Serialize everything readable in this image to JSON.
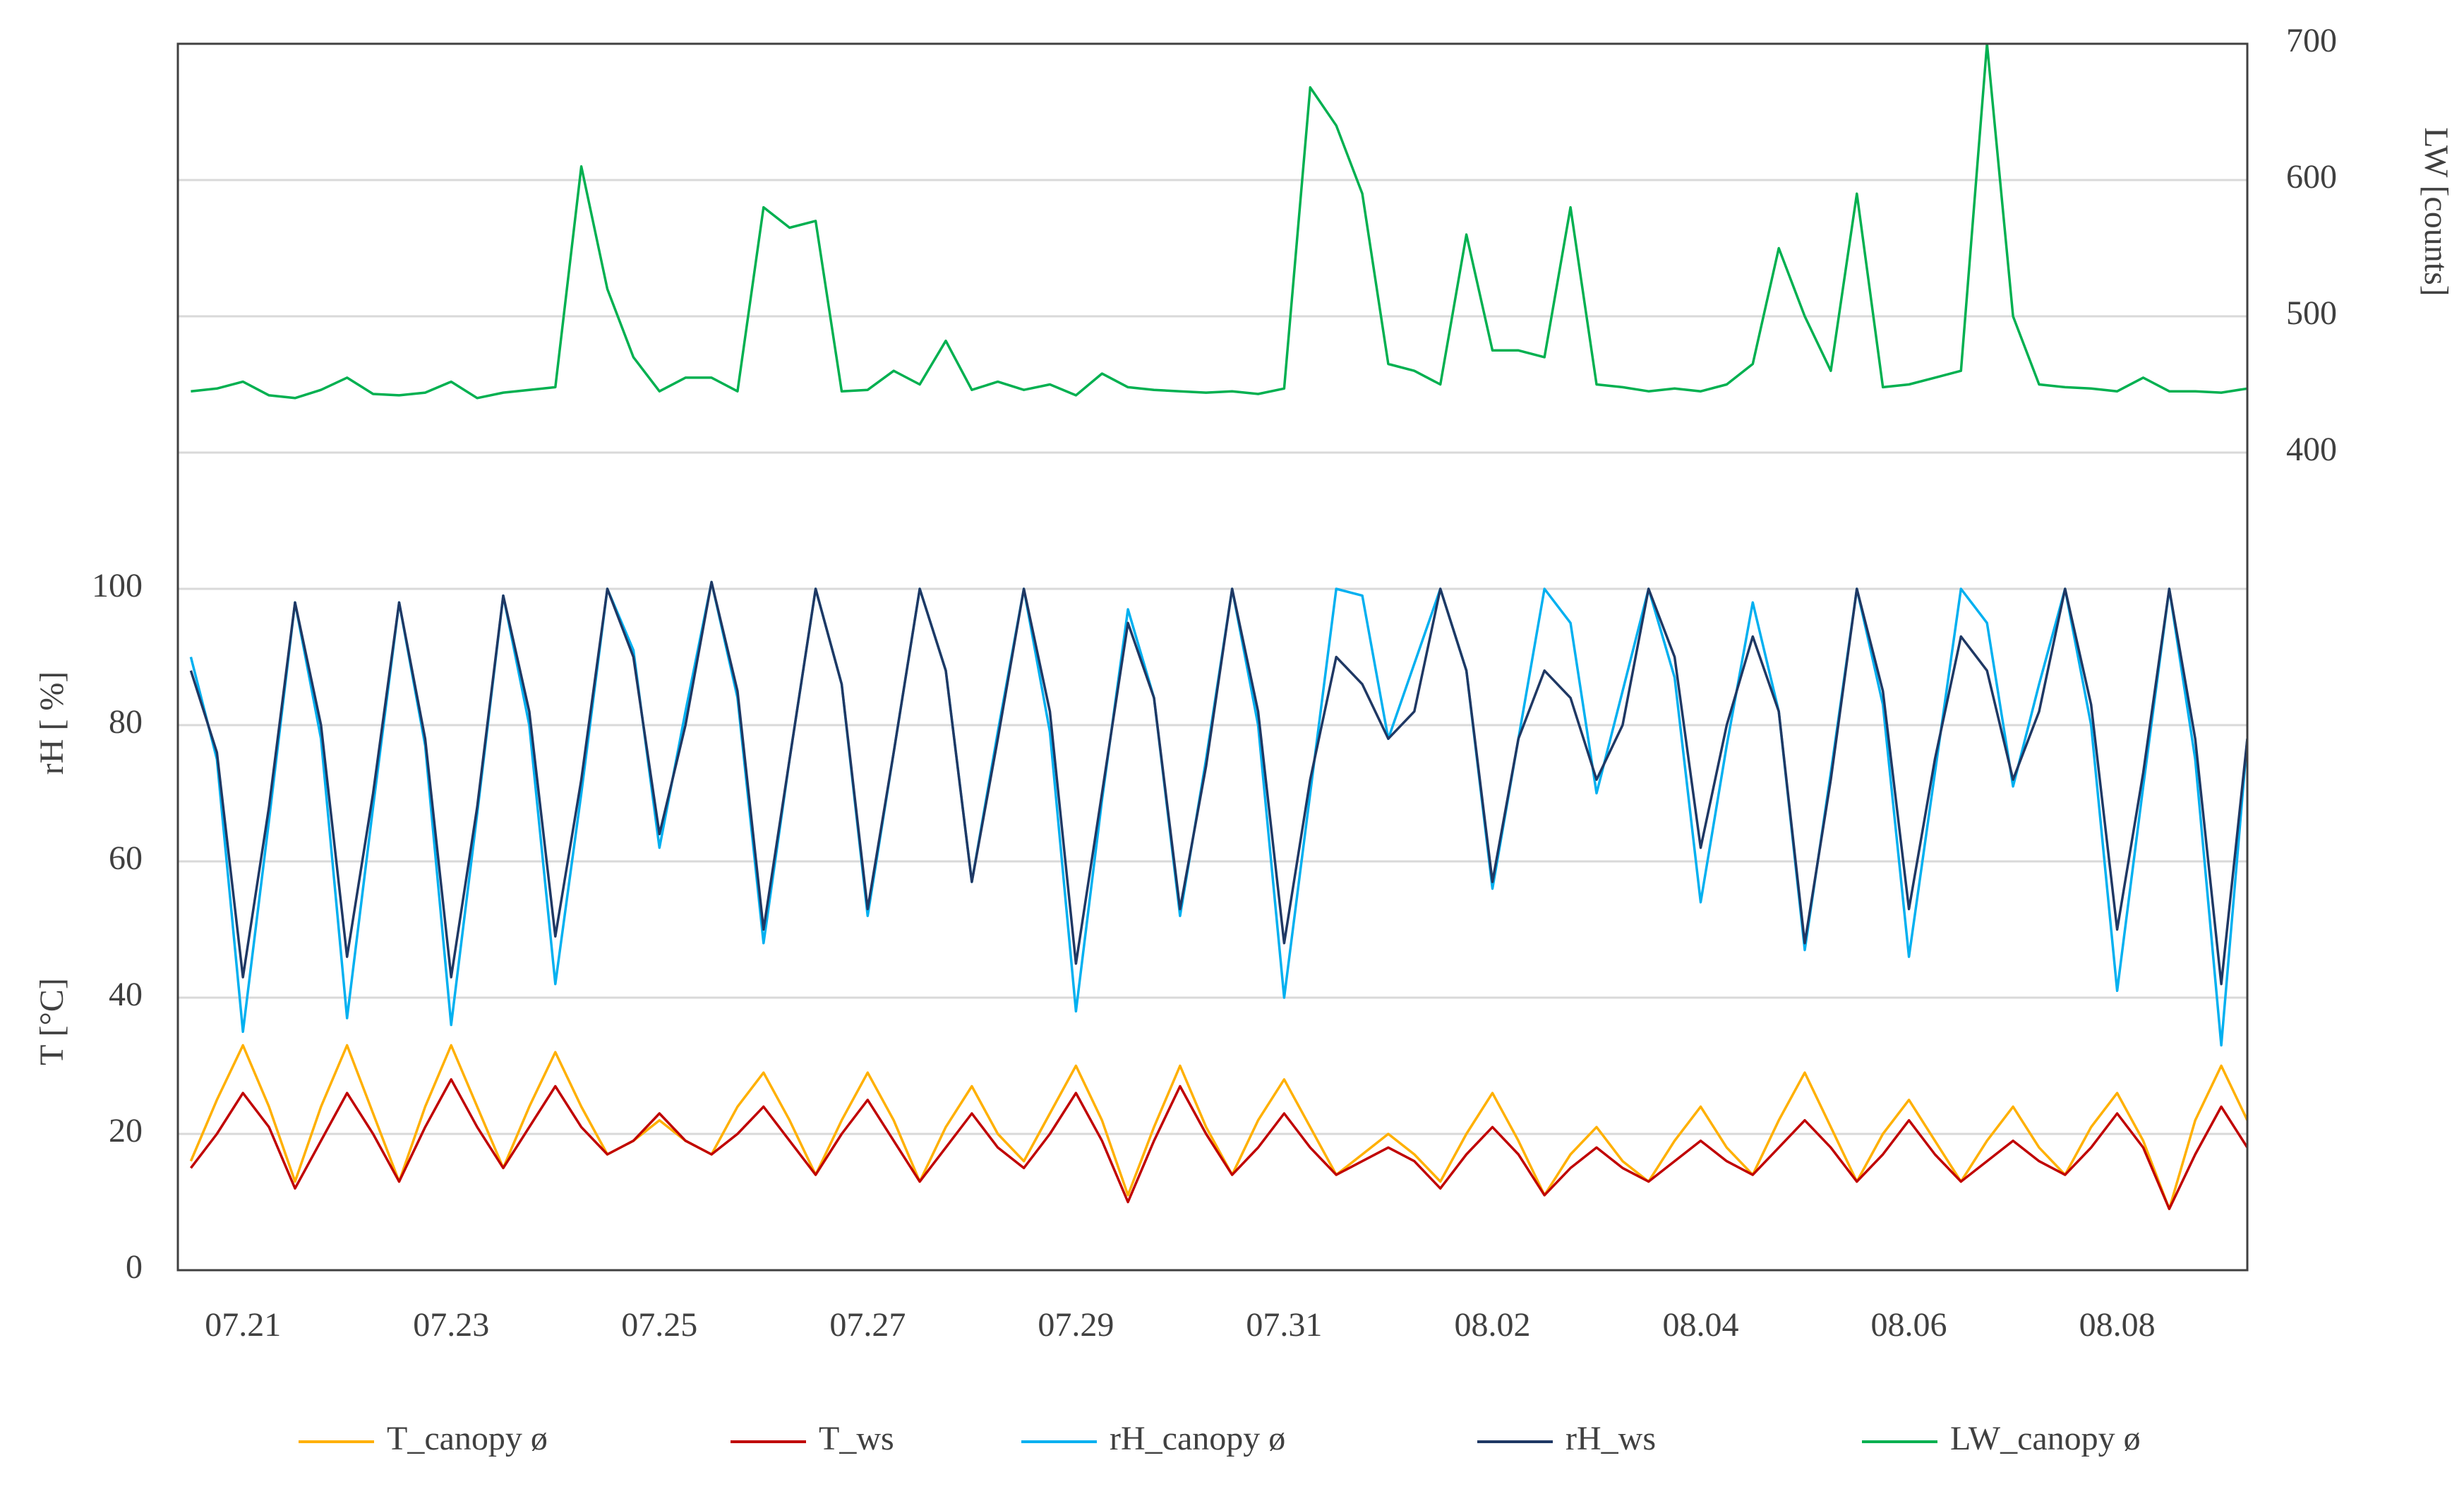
{
  "chart_data": {
    "type": "line",
    "categories": [
      null,
      null,
      "07.21",
      null,
      null,
      null,
      null,
      null,
      null,
      null,
      "07.23",
      null,
      null,
      null,
      null,
      null,
      null,
      null,
      "07.25",
      null,
      null,
      null,
      null,
      null,
      null,
      null,
      "07.27",
      null,
      null,
      null,
      null,
      null,
      null,
      null,
      "07.29",
      null,
      null,
      null,
      null,
      null,
      null,
      null,
      "07.31",
      null,
      null,
      null,
      null,
      null,
      null,
      null,
      "08.02",
      null,
      null,
      null,
      null,
      null,
      null,
      null,
      "08.04",
      null,
      null,
      null,
      null,
      null,
      null,
      null,
      "08.06",
      null,
      null,
      null,
      null,
      null,
      null,
      null,
      "08.08",
      null,
      null,
      null,
      null,
      null
    ],
    "ylabel": [
      "T [°C]",
      "rH [ %]"
    ],
    "y2label": "LW [counts]",
    "ylim": [
      0,
      180
    ],
    "yticks": [
      0,
      20,
      40,
      60,
      80,
      100
    ],
    "y2lim": [
      -200,
      700
    ],
    "y2ticks": [
      400,
      500,
      600,
      700
    ],
    "grid": true,
    "legend": "bottom",
    "series": [
      {
        "name": "T_canopy ø",
        "color": "#ffb000",
        "values": [
          16,
          25,
          33,
          24,
          13,
          24,
          33,
          23,
          13,
          24,
          33,
          24,
          15,
          24,
          32,
          24,
          17,
          19,
          22,
          19,
          17,
          24,
          29,
          22,
          14,
          22,
          29,
          22,
          13,
          21,
          27,
          20,
          16,
          23,
          30,
          22,
          11,
          21,
          30,
          21,
          14,
          22,
          28,
          21,
          14,
          17,
          20,
          17,
          13,
          20,
          26,
          19,
          11,
          17,
          21,
          16,
          13,
          19,
          24,
          18,
          14,
          22,
          29,
          21,
          13,
          20,
          25,
          19,
          13,
          19,
          24,
          18,
          14,
          21,
          26,
          19,
          9,
          22,
          30,
          22
        ]
      },
      {
        "name": "T_ws",
        "color": "#c00000",
        "values": [
          15,
          20,
          26,
          21,
          12,
          19,
          26,
          20,
          13,
          21,
          28,
          21,
          15,
          21,
          27,
          21,
          17,
          19,
          23,
          19,
          17,
          20,
          24,
          19,
          14,
          20,
          25,
          19,
          13,
          18,
          23,
          18,
          15,
          20,
          26,
          19,
          10,
          19,
          27,
          20,
          14,
          18,
          23,
          18,
          14,
          16,
          18,
          16,
          12,
          17,
          21,
          17,
          11,
          15,
          18,
          15,
          13,
          16,
          19,
          16,
          14,
          18,
          22,
          18,
          13,
          17,
          22,
          17,
          13,
          16,
          19,
          16,
          14,
          18,
          23,
          18,
          9,
          17,
          24,
          18
        ]
      },
      {
        "name": "rH_canopy ø",
        "color": "#00b0f0",
        "values": [
          90,
          75,
          35,
          66,
          98,
          78,
          37,
          68,
          98,
          77,
          36,
          67,
          99,
          80,
          42,
          70,
          100,
          91,
          62,
          82,
          101,
          84,
          48,
          75,
          100,
          86,
          52,
          76,
          100,
          88,
          57,
          79,
          100,
          79,
          38,
          69,
          97,
          84,
          52,
          75,
          100,
          80,
          40,
          70,
          100,
          99,
          78,
          89,
          100,
          88,
          56,
          78,
          100,
          95,
          70,
          85,
          100,
          87,
          54,
          77,
          98,
          82,
          47,
          73,
          100,
          83,
          46,
          73,
          100,
          95,
          71,
          86,
          100,
          80,
          41,
          71,
          100,
          75,
          33,
          78
        ]
      },
      {
        "name": "rH_ws",
        "color": "#1f3864",
        "values": [
          88,
          76,
          43,
          68,
          98,
          80,
          46,
          70,
          98,
          78,
          43,
          68,
          99,
          82,
          49,
          72,
          100,
          90,
          64,
          80,
          101,
          85,
          50,
          75,
          100,
          86,
          53,
          76,
          100,
          88,
          57,
          78,
          100,
          82,
          45,
          70,
          95,
          84,
          53,
          74,
          100,
          82,
          48,
          72,
          90,
          86,
          78,
          82,
          100,
          88,
          57,
          78,
          88,
          84,
          72,
          80,
          100,
          90,
          62,
          80,
          93,
          82,
          48,
          72,
          100,
          85,
          53,
          75,
          93,
          88,
          72,
          82,
          100,
          83,
          50,
          73,
          100,
          78,
          42,
          78
        ]
      },
      {
        "name": "LW_canopy ø",
        "color": "#00b050",
        "axis": "y2",
        "values": [
          445,
          447,
          452,
          442,
          440,
          446,
          455,
          443,
          442,
          444,
          452,
          440,
          444,
          446,
          448,
          610,
          520,
          470,
          445,
          455,
          455,
          445,
          580,
          565,
          570,
          445,
          446,
          460,
          450,
          482,
          446,
          452,
          446,
          450,
          442,
          458,
          448,
          446,
          445,
          444,
          445,
          443,
          447,
          668,
          640,
          590,
          465,
          460,
          450,
          560,
          475,
          475,
          470,
          580,
          450,
          448,
          445,
          447,
          445,
          450,
          465,
          550,
          500,
          460,
          590,
          448,
          450,
          455,
          460,
          700,
          500,
          450,
          448,
          447,
          445,
          455,
          445,
          445,
          444,
          447
        ]
      }
    ]
  }
}
